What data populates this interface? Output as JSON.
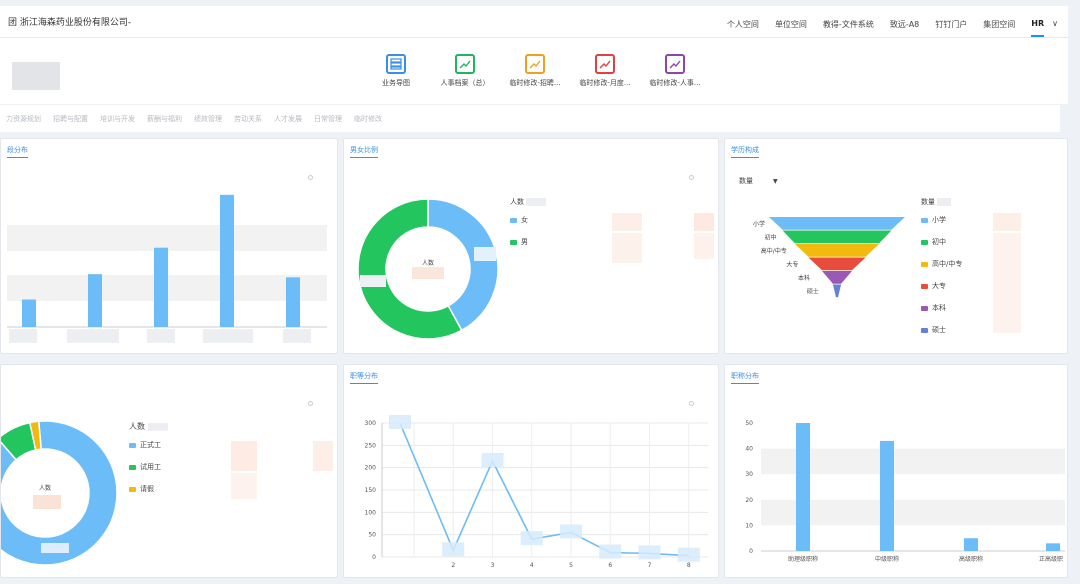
{
  "header": {
    "brand": "团  浙江海森药业股份有限公司-",
    "nav": [
      "个人空间",
      "单位空间",
      "教得-文件系统",
      "致远-A8",
      "钉钉门户",
      "集团空间",
      "HR"
    ],
    "nav_dropdown": "∨",
    "active": "HR"
  },
  "apps": [
    {
      "label": "业务导图",
      "color": "#3a8ee6",
      "icon": "table-icon"
    },
    {
      "label": "人事档案（总）",
      "color": "#22b35e",
      "icon": "trend-icon"
    },
    {
      "label": "临时修改-招聘...",
      "color": "#f0a020",
      "icon": "trend-icon"
    },
    {
      "label": "临时修改-月度...",
      "color": "#e04040",
      "icon": "trend-icon"
    },
    {
      "label": "临时修改-人事...",
      "color": "#8e44ad",
      "icon": "trend-icon"
    }
  ],
  "tabs": [
    "力资源规划",
    "招聘与配置",
    "培训与开发",
    "薪酬与福利",
    "绩效管理",
    "劳动关系",
    "人才发展",
    "日常管理",
    "临时修改"
  ],
  "colors": {
    "blue": "#6cbcf7",
    "green": "#22c55e",
    "yellow": "#f2b90f",
    "red": "#e84c3d",
    "purple": "#9b59b6",
    "slate": "#6480d8"
  },
  "panel1": {
    "title": "段分布"
  },
  "panel2": {
    "title": "男女比例",
    "legend_title": "人数",
    "center_label": "人数",
    "legend": [
      "女",
      "男"
    ]
  },
  "panel3": {
    "title": "学历构成",
    "select_label": "数量",
    "legend_title": "数量",
    "legend": [
      "小学",
      "初中",
      "高中/中专",
      "大专",
      "本科",
      "硕士"
    ]
  },
  "panel4": {
    "title": "",
    "legend_title": "人数",
    "center_label": "人数",
    "legend": [
      "正式工",
      "试用工",
      "请假"
    ]
  },
  "panel5": {
    "title": "职等分布"
  },
  "panel6": {
    "title": "职称分布"
  },
  "chart_data": [
    {
      "type": "bar",
      "categories": [
        "",
        "",
        "",
        "",
        ""
      ],
      "values": [
        26,
        50,
        75,
        125,
        47
      ],
      "ylim": [
        0,
        140
      ]
    },
    {
      "type": "pie",
      "series": [
        {
          "name": "人数",
          "labels": [
            "女",
            "男"
          ],
          "values": [
            42,
            58
          ]
        }
      ]
    },
    {
      "type": "funnel",
      "categories": [
        "小学",
        "初中",
        "高中/中专",
        "大专",
        "本科",
        "硕士"
      ],
      "values": [
        100,
        80,
        62,
        42,
        22,
        6
      ]
    },
    {
      "type": "pie",
      "series": [
        {
          "name": "人数",
          "labels": [
            "正式工",
            "试用工",
            "请假"
          ],
          "values": [
            90,
            8,
            2
          ]
        }
      ]
    },
    {
      "type": "line",
      "x": [
        1,
        2,
        3,
        4,
        5,
        6,
        7,
        8
      ],
      "values": [
        300,
        15,
        215,
        40,
        55,
        10,
        8,
        3
      ],
      "ylim": [
        0,
        300
      ],
      "yticks": [
        "0",
        "50",
        "100",
        "150",
        "200",
        "250",
        "300"
      ],
      "xticks": [
        "2",
        "3",
        "4",
        "5",
        "6",
        "7",
        "8"
      ]
    },
    {
      "type": "bar",
      "categories": [
        "助理级职称",
        "中级职称",
        "高级职称",
        "正高级职"
      ],
      "values": [
        50,
        43,
        5,
        3
      ],
      "ylim": [
        0,
        50
      ],
      "yticks": [
        "0",
        "10",
        "20",
        "30",
        "40",
        "50"
      ]
    }
  ]
}
